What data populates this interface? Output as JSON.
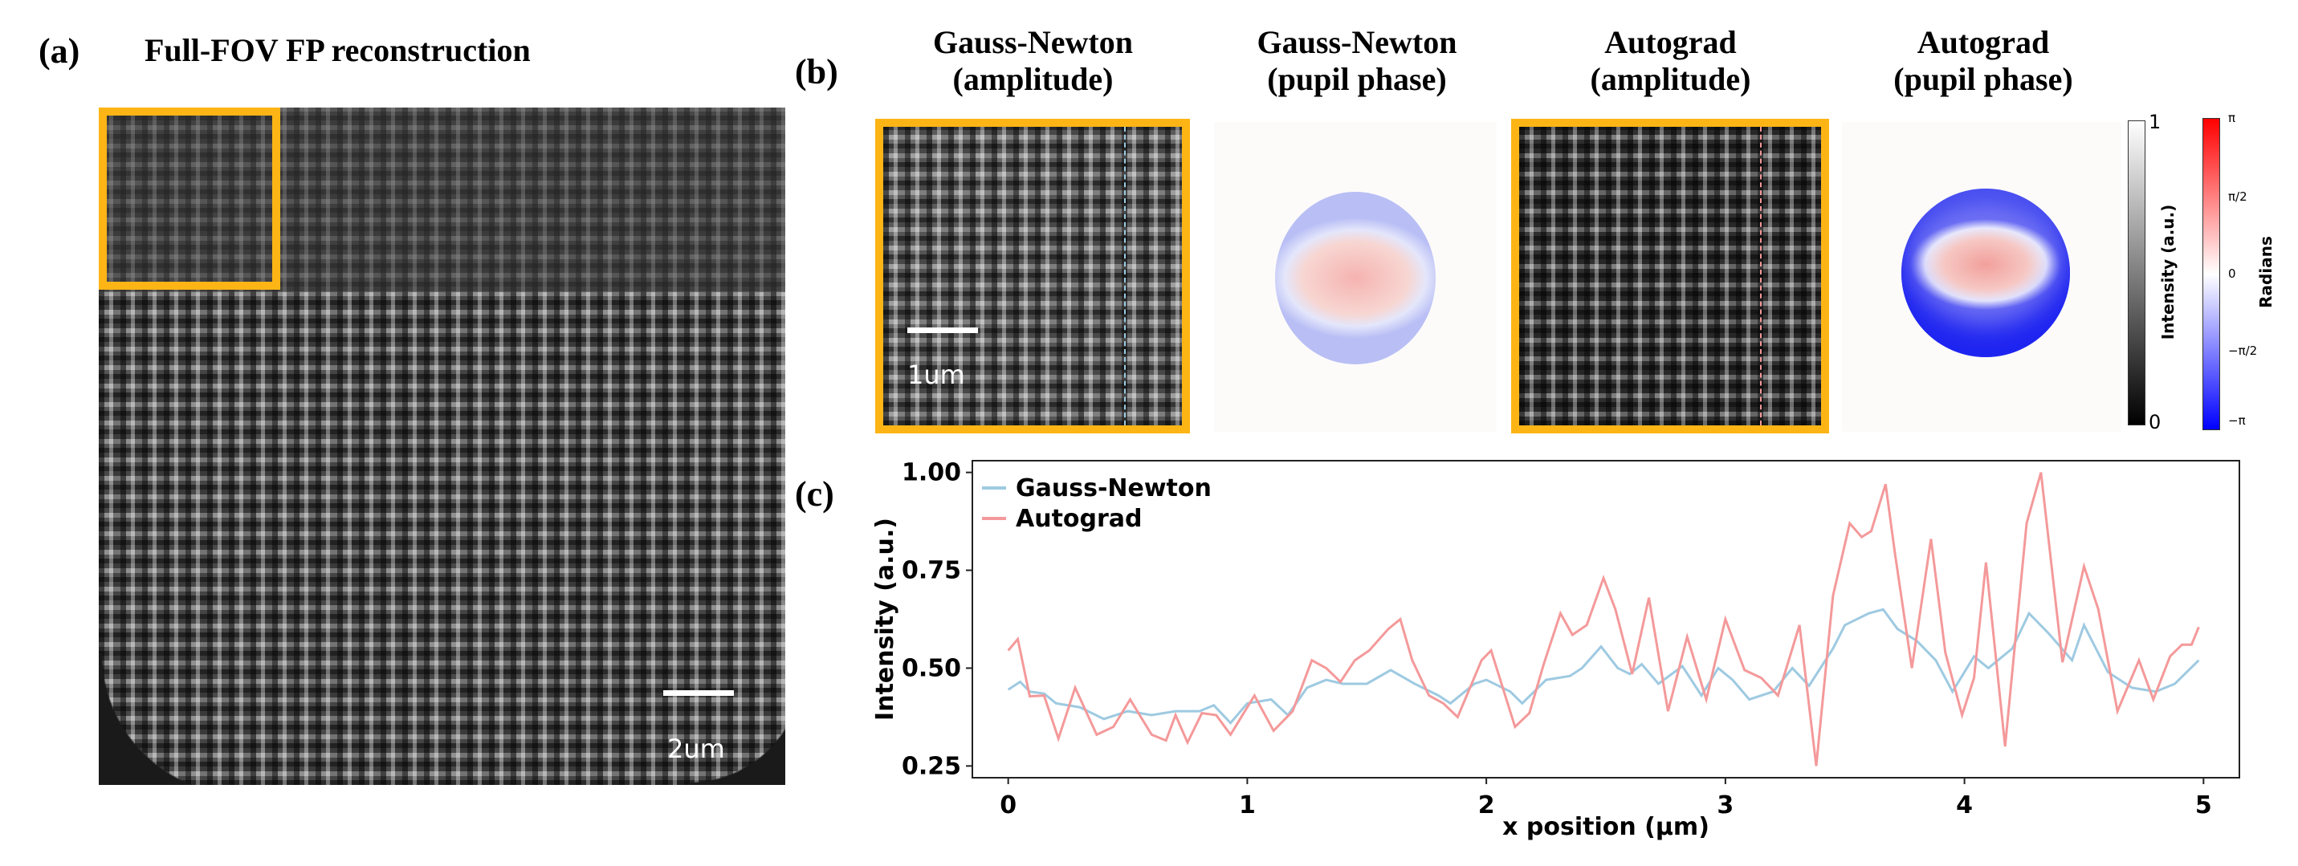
{
  "panels": {
    "a": {
      "label": "(a)",
      "title": "Full-FOV FP reconstruction",
      "scalebar": "2um"
    },
    "b": {
      "label": "(b)",
      "titles": [
        [
          "Gauss-Newton",
          "(amplitude)"
        ],
        [
          "Gauss-Newton",
          "(pupil phase)"
        ],
        [
          "Autograd",
          "(amplitude)"
        ],
        [
          "Autograd",
          "(pupil phase)"
        ]
      ],
      "scalebar": "1um",
      "intensity_cbar": {
        "label": "Intensity (a.u.)",
        "ticks": [
          "1",
          "0"
        ]
      },
      "phase_cbar": {
        "label": "Radians",
        "ticks": [
          "π",
          "π/2",
          "0",
          "−π/2",
          "−π"
        ]
      }
    },
    "c": {
      "label": "(c)"
    }
  },
  "colors": {
    "highlight": "#FDB515",
    "gauss_newton": "#9ECAE1",
    "autograd": "#F4999A"
  },
  "chart_data": {
    "type": "line",
    "xlabel": "x position (µm)",
    "ylabel": "Intensity (a.u.)",
    "xlim": [
      -0.15,
      5.15
    ],
    "ylim": [
      0.22,
      1.03
    ],
    "xticks": [
      "0",
      "1",
      "2",
      "3",
      "4",
      "5"
    ],
    "yticks": [
      "0.25",
      "0.50",
      "0.75",
      "1.00"
    ],
    "legend": "top-left",
    "grid": false,
    "series": [
      {
        "name": "Gauss-Newton",
        "x": [
          0,
          0.05,
          0.09,
          0.15,
          0.2,
          0.3,
          0.4,
          0.5,
          0.6,
          0.7,
          0.8,
          0.86,
          0.93,
          1.0,
          1.1,
          1.17,
          1.25,
          1.33,
          1.4,
          1.5,
          1.6,
          1.7,
          1.8,
          1.85,
          1.95,
          2.0,
          2.1,
          2.15,
          2.25,
          2.35,
          2.4,
          2.48,
          2.55,
          2.6,
          2.65,
          2.72,
          2.82,
          2.9,
          2.97,
          3.03,
          3.1,
          3.2,
          3.28,
          3.35,
          3.45,
          3.5,
          3.6,
          3.66,
          3.72,
          3.8,
          3.88,
          3.95,
          4.04,
          4.1,
          4.2,
          4.27,
          4.35,
          4.45,
          4.5,
          4.6,
          4.7,
          4.8,
          4.88,
          4.98
        ],
        "y": [
          0.445,
          0.465,
          0.44,
          0.435,
          0.41,
          0.4,
          0.37,
          0.39,
          0.38,
          0.39,
          0.39,
          0.405,
          0.36,
          0.41,
          0.42,
          0.38,
          0.45,
          0.47,
          0.46,
          0.46,
          0.495,
          0.46,
          0.43,
          0.41,
          0.46,
          0.47,
          0.44,
          0.41,
          0.47,
          0.48,
          0.5,
          0.555,
          0.5,
          0.485,
          0.51,
          0.46,
          0.505,
          0.43,
          0.5,
          0.47,
          0.42,
          0.44,
          0.5,
          0.455,
          0.55,
          0.61,
          0.64,
          0.65,
          0.6,
          0.57,
          0.52,
          0.44,
          0.53,
          0.5,
          0.55,
          0.64,
          0.59,
          0.52,
          0.61,
          0.49,
          0.45,
          0.44,
          0.46,
          0.52
        ]
      },
      {
        "name": "Autograd",
        "x": [
          0,
          0.04,
          0.09,
          0.15,
          0.21,
          0.28,
          0.37,
          0.44,
          0.51,
          0.6,
          0.66,
          0.7,
          0.75,
          0.81,
          0.87,
          0.93,
          1.03,
          1.11,
          1.19,
          1.27,
          1.33,
          1.39,
          1.45,
          1.51,
          1.59,
          1.64,
          1.69,
          1.76,
          1.82,
          1.88,
          1.98,
          2.02,
          2.12,
          2.18,
          2.24,
          2.31,
          2.36,
          2.42,
          2.49,
          2.54,
          2.61,
          2.68,
          2.76,
          2.84,
          2.92,
          3.0,
          3.08,
          3.15,
          3.22,
          3.31,
          3.38,
          3.45,
          3.52,
          3.57,
          3.61,
          3.67,
          3.71,
          3.78,
          3.86,
          3.92,
          3.99,
          4.04,
          4.09,
          4.17,
          4.26,
          4.32,
          4.41,
          4.5,
          4.56,
          4.64,
          4.73,
          4.79,
          4.86,
          4.91,
          4.95,
          4.98
        ],
        "y": [
          0.545,
          0.574,
          0.428,
          0.43,
          0.32,
          0.45,
          0.33,
          0.35,
          0.42,
          0.33,
          0.315,
          0.38,
          0.31,
          0.385,
          0.38,
          0.33,
          0.43,
          0.34,
          0.39,
          0.52,
          0.5,
          0.465,
          0.52,
          0.545,
          0.6,
          0.625,
          0.52,
          0.43,
          0.41,
          0.375,
          0.52,
          0.545,
          0.35,
          0.385,
          0.51,
          0.64,
          0.585,
          0.61,
          0.73,
          0.65,
          0.485,
          0.68,
          0.39,
          0.58,
          0.42,
          0.625,
          0.495,
          0.475,
          0.43,
          0.61,
          0.25,
          0.685,
          0.87,
          0.835,
          0.85,
          0.97,
          0.79,
          0.5,
          0.83,
          0.54,
          0.38,
          0.475,
          0.77,
          0.3,
          0.87,
          1.0,
          0.515,
          0.76,
          0.65,
          0.39,
          0.52,
          0.42,
          0.53,
          0.56,
          0.56,
          0.605
        ]
      }
    ]
  }
}
